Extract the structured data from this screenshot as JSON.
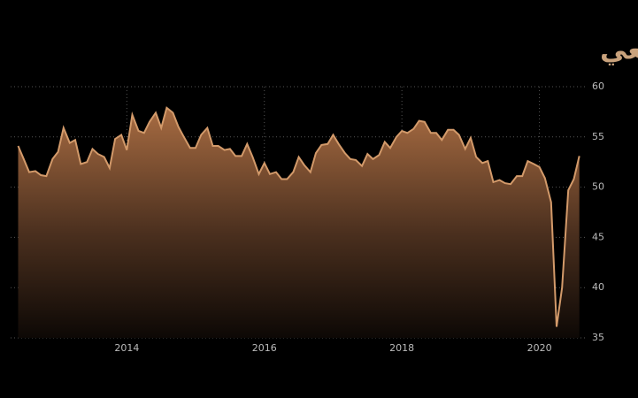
{
  "chart_data": {
    "type": "area",
    "title": "مؤشر مديري المشتريات بالقطاع التصنيعي",
    "x": [
      2012.42,
      2012.5,
      2012.58,
      2012.67,
      2012.75,
      2012.83,
      2012.92,
      2013.0,
      2013.08,
      2013.17,
      2013.25,
      2013.33,
      2013.42,
      2013.5,
      2013.58,
      2013.67,
      2013.75,
      2013.83,
      2013.92,
      2014.0,
      2014.08,
      2014.17,
      2014.25,
      2014.33,
      2014.42,
      2014.5,
      2014.58,
      2014.67,
      2014.75,
      2014.83,
      2014.92,
      2015.0,
      2015.08,
      2015.17,
      2015.25,
      2015.33,
      2015.42,
      2015.5,
      2015.58,
      2015.67,
      2015.75,
      2015.83,
      2015.92,
      2016.0,
      2016.08,
      2016.17,
      2016.25,
      2016.33,
      2016.42,
      2016.5,
      2016.58,
      2016.67,
      2016.75,
      2016.83,
      2016.92,
      2017.0,
      2017.08,
      2017.17,
      2017.25,
      2017.33,
      2017.42,
      2017.5,
      2017.58,
      2017.67,
      2017.75,
      2017.83,
      2017.92,
      2018.0,
      2018.08,
      2018.17,
      2018.25,
      2018.33,
      2018.42,
      2018.5,
      2018.58,
      2018.67,
      2018.75,
      2018.83,
      2018.92,
      2019.0,
      2019.08,
      2019.17,
      2019.25,
      2019.33,
      2019.42,
      2019.5,
      2019.58,
      2019.67,
      2019.75,
      2019.83,
      2019.92,
      2020.0,
      2020.08,
      2020.17,
      2020.25,
      2020.33,
      2020.42,
      2020.5,
      2020.58
    ],
    "values": [
      54.1,
      52.8,
      51.5,
      51.6,
      51.2,
      51.1,
      52.8,
      53.5,
      55.9,
      54.4,
      54.7,
      52.3,
      52.5,
      53.8,
      53.3,
      53.0,
      51.9,
      54.8,
      55.2,
      53.7,
      57.2,
      55.6,
      55.4,
      56.5,
      57.4,
      55.9,
      57.9,
      57.4,
      56.0,
      55.0,
      53.9,
      53.9,
      55.2,
      55.9,
      54.1,
      54.1,
      53.7,
      53.8,
      53.1,
      53.1,
      54.3,
      53.0,
      51.3,
      52.4,
      51.3,
      51.5,
      50.8,
      50.8,
      51.5,
      53.0,
      52.2,
      51.5,
      53.4,
      54.2,
      54.3,
      55.2,
      54.3,
      53.4,
      52.8,
      52.7,
      52.1,
      53.3,
      52.8,
      53.2,
      54.5,
      53.9,
      55.0,
      55.6,
      55.4,
      55.8,
      56.6,
      56.5,
      55.4,
      55.4,
      54.7,
      55.7,
      55.7,
      55.2,
      53.8,
      54.9,
      53.0,
      52.4,
      52.6,
      50.5,
      50.7,
      50.4,
      50.3,
      51.1,
      51.1,
      52.6,
      52.3,
      52.0,
      50.9,
      48.5,
      36.1,
      40.0,
      49.7,
      50.8,
      53.1
    ],
    "color": "#d39a6a",
    "xlim": [
      2012.31,
      2020.7
    ],
    "xticks": [
      2014,
      2016,
      2018,
      2020
    ],
    "ylim": [
      35,
      60
    ],
    "yticks": [
      35,
      40,
      45,
      50,
      55,
      60
    ],
    "grid": true
  }
}
